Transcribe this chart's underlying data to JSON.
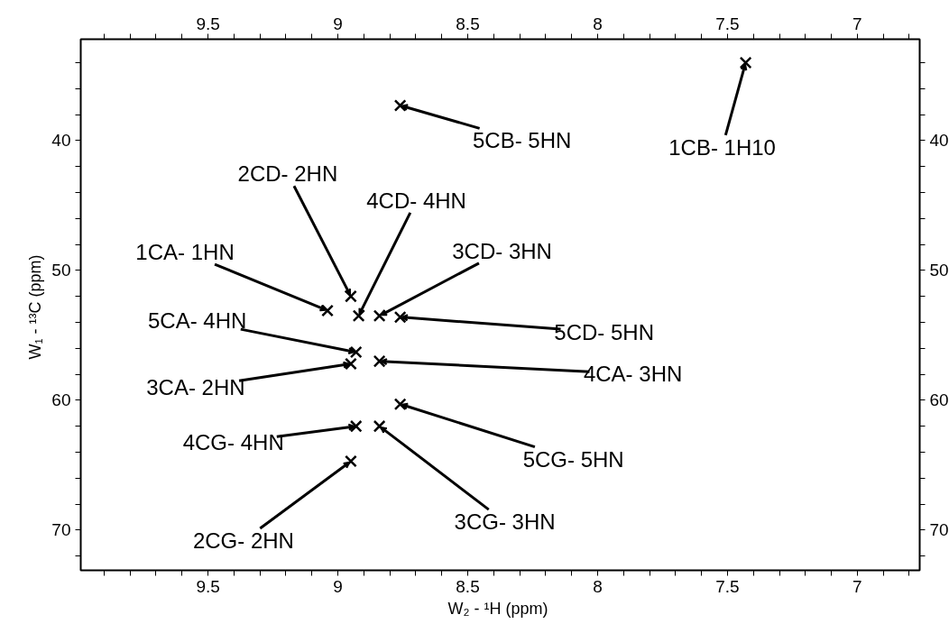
{
  "chart_data": {
    "type": "scatter",
    "xlabel": "W₂ - ¹H  (ppm)",
    "ylabel": "W₁ - ¹³C  (ppm)",
    "marker": "cross",
    "grid": false,
    "xlim": [
      9.99,
      6.76
    ],
    "ylim": [
      73.1,
      32.2
    ],
    "x2lim": [
      9.99,
      6.76
    ],
    "y2lim": [
      73.1,
      32.2
    ],
    "xticks": [
      9.5,
      9.0,
      8.5,
      8.0,
      7.5,
      7.0,
      {
        "value": 9.9,
        "label": null
      },
      {
        "value": 9.8,
        "label": null
      },
      {
        "value": 9.7,
        "label": null
      },
      {
        "value": 9.6,
        "label": null
      },
      {
        "value": 9.4,
        "label": null
      },
      {
        "value": 9.3,
        "label": null
      },
      {
        "value": 9.2,
        "label": null
      },
      {
        "value": 9.1,
        "label": null
      },
      {
        "value": 8.9,
        "label": null
      },
      {
        "value": 8.8,
        "label": null
      },
      {
        "value": 8.7,
        "label": null
      },
      {
        "value": 8.6,
        "label": null
      },
      {
        "value": 8.4,
        "label": null
      },
      {
        "value": 8.3,
        "label": null
      },
      {
        "value": 8.2,
        "label": null
      },
      {
        "value": 8.1,
        "label": null
      },
      {
        "value": 7.9,
        "label": null
      },
      {
        "value": 7.8,
        "label": null
      },
      {
        "value": 7.7,
        "label": null
      },
      {
        "value": 7.6,
        "label": null
      },
      {
        "value": 7.4,
        "label": null
      },
      {
        "value": 7.3,
        "label": null
      },
      {
        "value": 7.2,
        "label": null
      },
      {
        "value": 7.1,
        "label": null
      },
      {
        "value": 6.9,
        "label": null
      },
      {
        "value": 6.8,
        "label": null
      }
    ],
    "x2ticks": [
      9.5,
      9.0,
      8.5,
      8.0,
      7.5,
      7.0,
      {
        "value": 9.9,
        "label": null
      },
      {
        "value": 9.8,
        "label": null
      },
      {
        "value": 9.7,
        "label": null
      },
      {
        "value": 9.6,
        "label": null
      },
      {
        "value": 9.4,
        "label": null
      },
      {
        "value": 9.3,
        "label": null
      },
      {
        "value": 9.2,
        "label": null
      },
      {
        "value": 9.1,
        "label": null
      },
      {
        "value": 8.9,
        "label": null
      },
      {
        "value": 8.8,
        "label": null
      },
      {
        "value": 8.7,
        "label": null
      },
      {
        "value": 8.6,
        "label": null
      },
      {
        "value": 8.4,
        "label": null
      },
      {
        "value": 8.3,
        "label": null
      },
      {
        "value": 8.2,
        "label": null
      },
      {
        "value": 8.1,
        "label": null
      },
      {
        "value": 7.9,
        "label": null
      },
      {
        "value": 7.8,
        "label": null
      },
      {
        "value": 7.7,
        "label": null
      },
      {
        "value": 7.6,
        "label": null
      },
      {
        "value": 7.4,
        "label": null
      },
      {
        "value": 7.3,
        "label": null
      },
      {
        "value": 7.2,
        "label": null
      },
      {
        "value": 7.1,
        "label": null
      },
      {
        "value": 6.9,
        "label": null
      },
      {
        "value": 6.8,
        "label": null
      }
    ],
    "yticks": [
      40,
      50,
      60,
      70,
      {
        "value": 34,
        "label": null
      },
      {
        "value": 36,
        "label": null
      },
      {
        "value": 38,
        "label": null
      },
      {
        "value": 42,
        "label": null
      },
      {
        "value": 44,
        "label": null
      },
      {
        "value": 46,
        "label": null
      },
      {
        "value": 48,
        "label": null
      },
      {
        "value": 52,
        "label": null
      },
      {
        "value": 54,
        "label": null
      },
      {
        "value": 56,
        "label": null
      },
      {
        "value": 58,
        "label": null
      },
      {
        "value": 62,
        "label": null
      },
      {
        "value": 64,
        "label": null
      },
      {
        "value": 66,
        "label": null
      },
      {
        "value": 68,
        "label": null
      },
      {
        "value": 72,
        "label": null
      }
    ],
    "y2ticks": [
      40,
      50,
      60,
      70,
      {
        "value": 34,
        "label": null
      },
      {
        "value": 36,
        "label": null
      },
      {
        "value": 38,
        "label": null
      },
      {
        "value": 42,
        "label": null
      },
      {
        "value": 44,
        "label": null
      },
      {
        "value": 46,
        "label": null
      },
      {
        "value": 48,
        "label": null
      },
      {
        "value": 52,
        "label": null
      },
      {
        "value": 54,
        "label": null
      },
      {
        "value": 56,
        "label": null
      },
      {
        "value": 58,
        "label": null
      },
      {
        "value": 62,
        "label": null
      },
      {
        "value": 64,
        "label": null
      },
      {
        "value": 66,
        "label": null
      },
      {
        "value": 68,
        "label": null
      },
      {
        "value": 72,
        "label": null
      }
    ],
    "series": [
      {
        "color": "#000000",
        "x": [
          9.04,
          8.95,
          8.92,
          8.84,
          8.76,
          8.93,
          8.95,
          8.84,
          8.93,
          8.76,
          8.84,
          8.95,
          8.76,
          7.43
        ],
        "values": [
          53.1,
          52.0,
          53.5,
          53.5,
          53.6,
          56.3,
          57.2,
          57.0,
          62.0,
          60.3,
          62.0,
          64.7,
          37.3,
          34.0
        ]
      }
    ],
    "annotations": [
      {
        "text": "1CA- 1HN",
        "x": 9.04,
        "y": 53.1
      },
      {
        "text": "2CD- 2HN",
        "x": 8.95,
        "y": 52.0
      },
      {
        "text": "4CD- 4HN",
        "x": 8.92,
        "y": 53.5
      },
      {
        "text": "3CD- 3HN",
        "x": 8.84,
        "y": 53.5
      },
      {
        "text": "5CD- 5HN",
        "x": 8.76,
        "y": 53.6
      },
      {
        "text": "5CA- 4HN",
        "x": 8.93,
        "y": 56.3
      },
      {
        "text": "3CA- 2HN",
        "x": 8.95,
        "y": 57.2
      },
      {
        "text": "4CA- 3HN",
        "x": 8.84,
        "y": 57.0
      },
      {
        "text": "4CG- 4HN",
        "x": 8.93,
        "y": 62.0
      },
      {
        "text": "5CG- 5HN",
        "x": 8.76,
        "y": 60.3
      },
      {
        "text": "3CG- 3HN",
        "x": 8.84,
        "y": 62.0
      },
      {
        "text": "2CG- 2HN",
        "x": 8.95,
        "y": 64.7
      },
      {
        "text": "5CB- 5HN",
        "x": 8.76,
        "y": 37.3
      },
      {
        "text": "1CB- 1H10",
        "x": 7.43,
        "y": 34.0
      }
    ]
  }
}
